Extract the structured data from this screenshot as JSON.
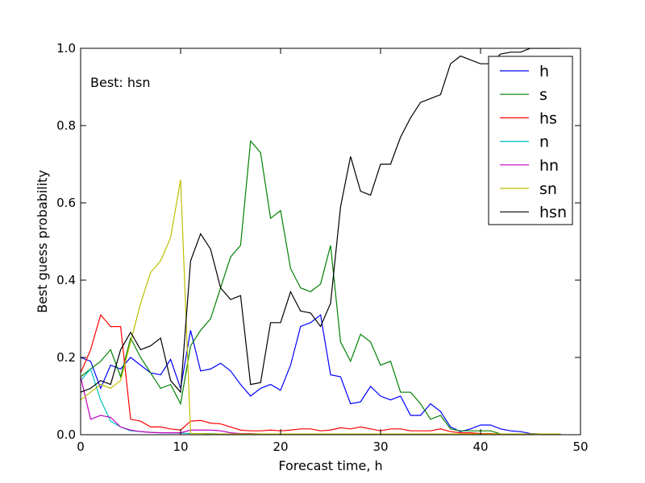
{
  "chart_data": {
    "type": "line",
    "title": "",
    "xlabel": "Forecast time, h",
    "ylabel": "Best guess probability",
    "xlim": [
      0,
      50
    ],
    "ylim": [
      0.0,
      1.0
    ],
    "xticks": [
      "0",
      "10",
      "20",
      "30",
      "40",
      "50"
    ],
    "yticks": [
      "0.0",
      "0.2",
      "0.4",
      "0.6",
      "0.8",
      "1.0"
    ],
    "grid": false,
    "legend_position": "top-right",
    "annotation": "Best: hsn",
    "series": [
      {
        "name": "h",
        "color": "#0000ff",
        "x": [
          0,
          1,
          2,
          3,
          4,
          5,
          6,
          7,
          8,
          9,
          10,
          11,
          12,
          13,
          14,
          15,
          16,
          17,
          18,
          19,
          20,
          21,
          22,
          23,
          24,
          25,
          26,
          27,
          28,
          29,
          30,
          31,
          32,
          33,
          34,
          35,
          36,
          37,
          38,
          39,
          40,
          41,
          42,
          43,
          44,
          45,
          46,
          47,
          48
        ],
        "y": [
          0.2,
          0.19,
          0.12,
          0.18,
          0.17,
          0.2,
          0.18,
          0.16,
          0.155,
          0.195,
          0.12,
          0.27,
          0.165,
          0.17,
          0.185,
          0.165,
          0.13,
          0.1,
          0.12,
          0.13,
          0.115,
          0.18,
          0.28,
          0.29,
          0.31,
          0.155,
          0.15,
          0.08,
          0.085,
          0.125,
          0.1,
          0.09,
          0.1,
          0.05,
          0.05,
          0.08,
          0.06,
          0.02,
          0.008,
          0.015,
          0.025,
          0.025,
          0.015,
          0.01,
          0.008,
          0.003,
          0.002,
          0.002,
          0.002
        ]
      },
      {
        "name": "s",
        "color": "#008000",
        "x": [
          0,
          1,
          2,
          3,
          4,
          5,
          6,
          7,
          8,
          9,
          10,
          11,
          12,
          13,
          14,
          15,
          16,
          17,
          18,
          19,
          20,
          21,
          22,
          23,
          24,
          25,
          26,
          27,
          28,
          29,
          30,
          31,
          32,
          33,
          34,
          35,
          36,
          37,
          38,
          39,
          40,
          41,
          42,
          43,
          44,
          45,
          46,
          47,
          48
        ],
        "y": [
          0.15,
          0.17,
          0.19,
          0.22,
          0.15,
          0.25,
          0.2,
          0.16,
          0.12,
          0.13,
          0.08,
          0.23,
          0.27,
          0.3,
          0.38,
          0.46,
          0.49,
          0.76,
          0.73,
          0.56,
          0.58,
          0.43,
          0.38,
          0.37,
          0.39,
          0.49,
          0.24,
          0.19,
          0.26,
          0.24,
          0.18,
          0.19,
          0.11,
          0.11,
          0.08,
          0.04,
          0.05,
          0.015,
          0.01,
          0.01,
          0.01,
          0.01,
          0.002,
          0.002,
          0.002,
          0.002,
          0.002,
          0.002,
          0.002
        ]
      },
      {
        "name": "hs",
        "color": "#ff0000",
        "x": [
          0,
          1,
          2,
          3,
          4,
          5,
          6,
          7,
          8,
          9,
          10,
          11,
          12,
          13,
          14,
          15,
          16,
          17,
          18,
          19,
          20,
          21,
          22,
          23,
          24,
          25,
          26,
          27,
          28,
          29,
          30,
          31,
          32,
          33,
          34,
          35,
          36,
          37,
          38,
          39,
          40,
          41,
          42,
          43,
          44,
          45,
          46,
          47,
          48
        ],
        "y": [
          0.16,
          0.22,
          0.31,
          0.28,
          0.28,
          0.04,
          0.035,
          0.02,
          0.02,
          0.015,
          0.012,
          0.035,
          0.037,
          0.03,
          0.028,
          0.02,
          0.012,
          0.01,
          0.01,
          0.012,
          0.01,
          0.012,
          0.015,
          0.015,
          0.01,
          0.012,
          0.018,
          0.015,
          0.02,
          0.015,
          0.01,
          0.015,
          0.015,
          0.01,
          0.01,
          0.01,
          0.015,
          0.008,
          0.005,
          0.005,
          0.003,
          0.003,
          0.002,
          0.002,
          0.002,
          0.002,
          0.002,
          0.002,
          0.002
        ]
      },
      {
        "name": "n",
        "color": "#00bfbf",
        "x": [
          0,
          1,
          2,
          3,
          4,
          5,
          6,
          7,
          8,
          9,
          10,
          11,
          12,
          13,
          14,
          15,
          16,
          17,
          18,
          19,
          20,
          21,
          22,
          23,
          24,
          25,
          26,
          27,
          28,
          29,
          30,
          31,
          32,
          33,
          34,
          35,
          36,
          37,
          38,
          39,
          40,
          41,
          42,
          43,
          44,
          45,
          46,
          47,
          48
        ],
        "y": [
          0.14,
          0.17,
          0.09,
          0.035,
          0.02,
          0.01,
          0.008,
          0.006,
          0.005,
          0.005,
          0.004,
          0.003,
          0.003,
          0.003,
          0.002,
          0.002,
          0.002,
          0.002,
          0.002,
          0.002,
          0.002,
          0.002,
          0.002,
          0.002,
          0.002,
          0.002,
          0.002,
          0.002,
          0.002,
          0.002,
          0.002,
          0.002,
          0.002,
          0.002,
          0.002,
          0.002,
          0.002,
          0.002,
          0.002,
          0.002,
          0.002,
          0.002,
          0.002,
          0.002,
          0.002,
          0.002,
          0.002,
          0.002,
          0.002
        ]
      },
      {
        "name": "hn",
        "color": "#bf00bf",
        "x": [
          0,
          1,
          2,
          3,
          4,
          5,
          6,
          7,
          8,
          9,
          10,
          11,
          12,
          13,
          14,
          15,
          16,
          17,
          18,
          19,
          20,
          21,
          22,
          23,
          24,
          25,
          26,
          27,
          28,
          29,
          30,
          31,
          32,
          33,
          34,
          35,
          36,
          37,
          38,
          39,
          40,
          41,
          42,
          43,
          44,
          45,
          46,
          47,
          48
        ],
        "y": [
          0.15,
          0.04,
          0.05,
          0.045,
          0.02,
          0.012,
          0.008,
          0.006,
          0.005,
          0.005,
          0.005,
          0.012,
          0.012,
          0.012,
          0.01,
          0.005,
          0.003,
          0.003,
          0.002,
          0.002,
          0.002,
          0.002,
          0.002,
          0.002,
          0.002,
          0.002,
          0.002,
          0.002,
          0.002,
          0.002,
          0.002,
          0.002,
          0.002,
          0.002,
          0.002,
          0.002,
          0.002,
          0.002,
          0.002,
          0.002,
          0.002,
          0.002,
          0.002,
          0.002,
          0.002,
          0.002,
          0.002,
          0.002,
          0.002
        ]
      },
      {
        "name": "sn",
        "color": "#bfbf00",
        "x": [
          0,
          1,
          2,
          3,
          4,
          5,
          6,
          7,
          8,
          9,
          10,
          11,
          12,
          13,
          14,
          15,
          16,
          17,
          18,
          19,
          20,
          21,
          22,
          23,
          24,
          25,
          26,
          27,
          28,
          29,
          30,
          31,
          32,
          33,
          34,
          35,
          36,
          37,
          38,
          39,
          40,
          41,
          42,
          43,
          44,
          45,
          46,
          47,
          48
        ],
        "y": [
          0.09,
          0.11,
          0.13,
          0.12,
          0.14,
          0.24,
          0.34,
          0.42,
          0.45,
          0.51,
          0.66,
          0.003,
          0.003,
          0.002,
          0.002,
          0.002,
          0.002,
          0.002,
          0.002,
          0.002,
          0.002,
          0.002,
          0.002,
          0.002,
          0.002,
          0.002,
          0.002,
          0.002,
          0.002,
          0.002,
          0.002,
          0.002,
          0.002,
          0.002,
          0.002,
          0.002,
          0.002,
          0.002,
          0.002,
          0.002,
          0.002,
          0.002,
          0.002,
          0.002,
          0.002,
          0.002,
          0.002,
          0.002,
          0.002
        ]
      },
      {
        "name": "hsn",
        "color": "#000000",
        "x": [
          0,
          1,
          2,
          3,
          4,
          5,
          6,
          7,
          8,
          9,
          10,
          11,
          12,
          13,
          14,
          15,
          16,
          17,
          18,
          19,
          20,
          21,
          22,
          23,
          24,
          25,
          26,
          27,
          28,
          29,
          30,
          31,
          32,
          33,
          34,
          35,
          36,
          37,
          38,
          39,
          40,
          41,
          42,
          43,
          44,
          45,
          46,
          47,
          48
        ],
        "y": [
          0.11,
          0.12,
          0.14,
          0.13,
          0.22,
          0.265,
          0.22,
          0.23,
          0.25,
          0.14,
          0.11,
          0.45,
          0.52,
          0.48,
          0.38,
          0.35,
          0.36,
          0.13,
          0.135,
          0.29,
          0.29,
          0.37,
          0.32,
          0.315,
          0.28,
          0.34,
          0.59,
          0.72,
          0.63,
          0.62,
          0.7,
          0.7,
          0.77,
          0.82,
          0.86,
          0.87,
          0.88,
          0.96,
          0.98,
          0.97,
          0.96,
          0.96,
          0.985,
          0.99,
          0.99,
          1.0,
          1.0,
          1.0,
          1.0
        ]
      }
    ]
  }
}
